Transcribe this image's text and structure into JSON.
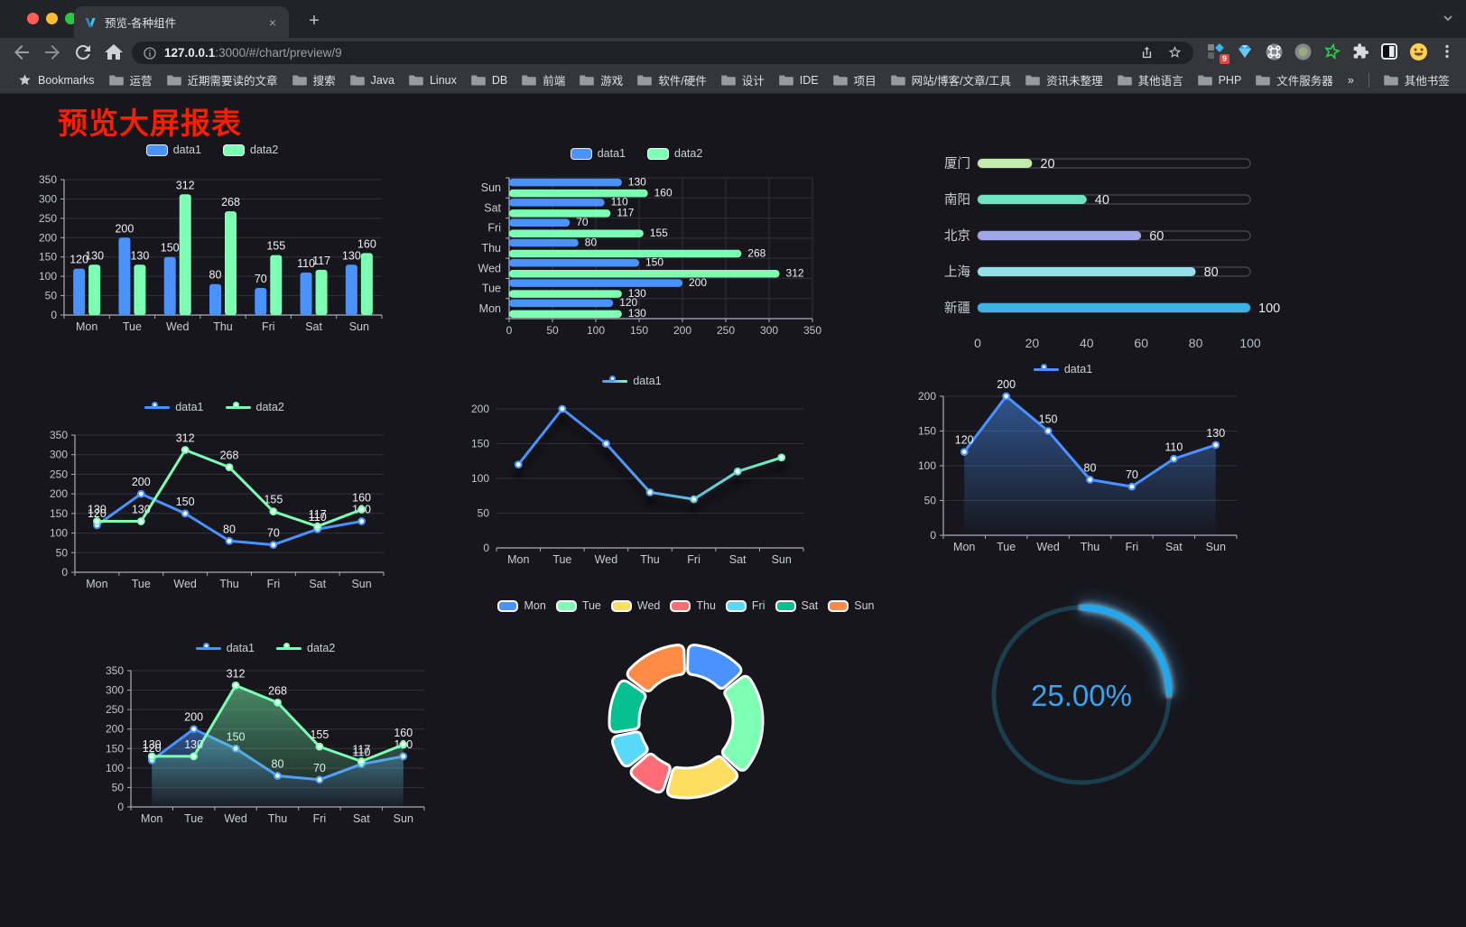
{
  "browser": {
    "window_controls": {
      "close": "#ff5f57",
      "minimize": "#febc2e",
      "zoom": "#28c840"
    },
    "tab": {
      "title": "预览-各种组件",
      "close_label": "×"
    },
    "tabstrip": {
      "new_tab_label": "+"
    },
    "toolbar": {
      "url_host": "127.0.0.1",
      "url_rest": ":3000/#/chart/preview/9",
      "extension_badge": "9"
    },
    "bookmarks_bar": {
      "bookmarks_label": "Bookmarks",
      "folders": [
        "运营",
        "近期需要读的文章",
        "搜索",
        "Java",
        "Linux",
        "DB",
        "前端",
        "游戏",
        "软件/硬件",
        "设计",
        "IDE",
        "项目",
        "网站/博客/文章/工具",
        "资讯未整理",
        "其他语言",
        "PHP",
        "文件服务器"
      ],
      "overflow_label": "»",
      "other_bookmarks_label": "其他书签"
    }
  },
  "page": {
    "title": "预览大屏报表",
    "title_color": "#ff1c00",
    "background": "#16161c"
  },
  "chart_data": [
    {
      "id": "grouped-bar",
      "type": "bar",
      "categories": [
        "Mon",
        "Tue",
        "Wed",
        "Thu",
        "Fri",
        "Sat",
        "Sun"
      ],
      "series": [
        {
          "name": "data1",
          "color": "#4992ff",
          "values": [
            120,
            200,
            150,
            80,
            70,
            110,
            130
          ]
        },
        {
          "name": "data2",
          "color": "#7cffb2",
          "values": [
            130,
            130,
            312,
            268,
            155,
            117,
            160
          ]
        }
      ],
      "ylim": [
        0,
        350
      ],
      "ytick_step": 50,
      "value_labels": true,
      "legend_position": "top",
      "grid": true
    },
    {
      "id": "horizontal-bar",
      "type": "hbar",
      "categories": [
        "Mon",
        "Tue",
        "Wed",
        "Thu",
        "Fri",
        "Sat",
        "Sun"
      ],
      "display_order_top_to_bottom": [
        "Sun",
        "Sat",
        "Fri",
        "Thu",
        "Wed",
        "Tue",
        "Mon"
      ],
      "series": [
        {
          "name": "data1",
          "color": "#4992ff",
          "values": [
            120,
            200,
            150,
            80,
            70,
            110,
            130
          ]
        },
        {
          "name": "data2",
          "color": "#7cffb2",
          "values": [
            130,
            130,
            312,
            268,
            155,
            117,
            160
          ]
        }
      ],
      "xlim": [
        0,
        350
      ],
      "xtick_step": 50,
      "value_labels": true,
      "legend_position": "top",
      "grid": true
    },
    {
      "id": "city-progress",
      "type": "progress-bars",
      "max": 100,
      "axis_ticks": [
        0,
        20,
        40,
        60,
        80,
        100
      ],
      "rows": [
        {
          "label": "厦门",
          "value": 20,
          "color": "#c4ebad"
        },
        {
          "label": "南阳",
          "value": 40,
          "color": "#6be6c1"
        },
        {
          "label": "北京",
          "value": 60,
          "color": "#a0a7e6"
        },
        {
          "label": "上海",
          "value": 80,
          "color": "#96dee8"
        },
        {
          "label": "新疆",
          "value": 100,
          "color": "#3fb1e3"
        }
      ]
    },
    {
      "id": "line-two-series",
      "type": "line",
      "categories": [
        "Mon",
        "Tue",
        "Wed",
        "Thu",
        "Fri",
        "Sat",
        "Sun"
      ],
      "series": [
        {
          "name": "data1",
          "color": "#4992ff",
          "values": [
            120,
            200,
            150,
            80,
            70,
            110,
            130
          ]
        },
        {
          "name": "data2",
          "color": "#7cffb2",
          "values": [
            130,
            130,
            312,
            268,
            155,
            117,
            160
          ]
        }
      ],
      "ylim": [
        0,
        350
      ],
      "ytick_step": 50,
      "value_labels": true,
      "legend_position": "top",
      "grid": true
    },
    {
      "id": "line-gradient",
      "type": "line",
      "categories": [
        "Mon",
        "Tue",
        "Wed",
        "Thu",
        "Fri",
        "Sat",
        "Sun"
      ],
      "series": [
        {
          "name": "data1",
          "color": "#4992ff",
          "color_gradient": [
            "#4992ff",
            "#7cffb2"
          ],
          "values": [
            120,
            200,
            150,
            80,
            70,
            110,
            130
          ]
        }
      ],
      "ylim": [
        0,
        200
      ],
      "ytick_step": 50,
      "value_labels": false,
      "legend_position": "top",
      "grid": true
    },
    {
      "id": "area-single",
      "type": "line",
      "categories": [
        "Mon",
        "Tue",
        "Wed",
        "Thu",
        "Fri",
        "Sat",
        "Sun"
      ],
      "series": [
        {
          "name": "data1",
          "color": "#4992ff",
          "area": true,
          "values": [
            120,
            200,
            150,
            80,
            70,
            110,
            130
          ]
        }
      ],
      "ylim": [
        0,
        200
      ],
      "ytick_step": 50,
      "value_labels": true,
      "legend_position": "top",
      "grid": true
    },
    {
      "id": "area-two-series",
      "type": "line",
      "categories": [
        "Mon",
        "Tue",
        "Wed",
        "Thu",
        "Fri",
        "Sat",
        "Sun"
      ],
      "series": [
        {
          "name": "data1",
          "color": "#4992ff",
          "area": true,
          "values": [
            120,
            200,
            150,
            80,
            70,
            110,
            130
          ]
        },
        {
          "name": "data2",
          "color": "#7cffb2",
          "area": true,
          "values": [
            130,
            130,
            312,
            268,
            155,
            117,
            160
          ]
        }
      ],
      "ylim": [
        0,
        350
      ],
      "ytick_step": 50,
      "value_labels": true,
      "legend_position": "top",
      "grid": true
    },
    {
      "id": "donut",
      "type": "pie",
      "categories": [
        "Mon",
        "Tue",
        "Wed",
        "Thu",
        "Fri",
        "Sat",
        "Sun"
      ],
      "values": [
        120,
        200,
        150,
        80,
        70,
        110,
        130
      ],
      "colors": [
        "#4992ff",
        "#7cffb2",
        "#fddd60",
        "#ff6e76",
        "#58d9f9",
        "#05c091",
        "#ff8a45"
      ],
      "legend_position": "top",
      "ring": true
    },
    {
      "id": "gauge",
      "type": "gauge",
      "value": 25,
      "max": 100,
      "display": "25.00%",
      "progress_color": "#23a7ec",
      "track_color": "#1b3f4e",
      "text_color": "#3ba3ec"
    }
  ]
}
